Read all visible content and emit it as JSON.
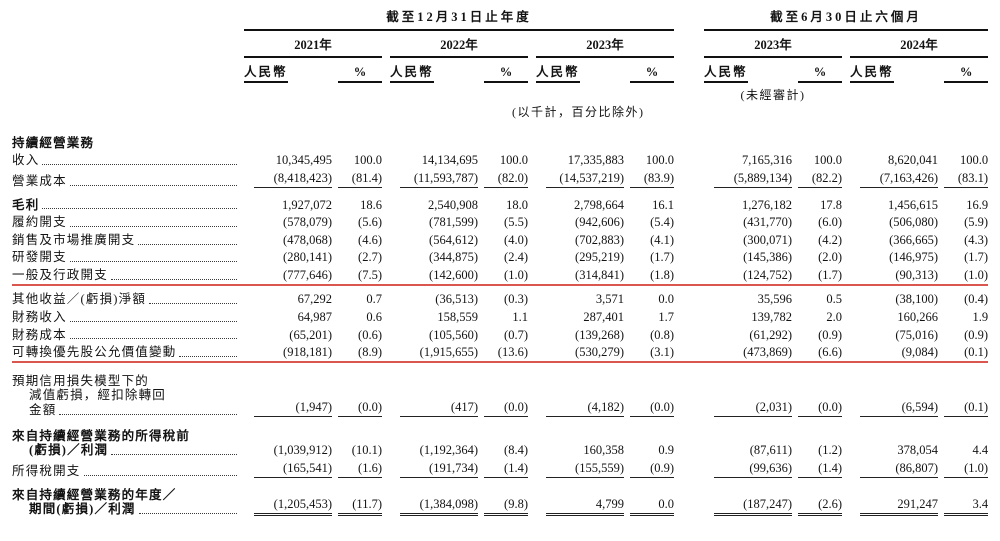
{
  "colors": {
    "red_annotation_line": "#d9574f",
    "rule_color": "#222222",
    "text_color": "#131313"
  },
  "header": {
    "annual_title": "截至12月31日止年度",
    "interim_title": "截至6月30日止六個月",
    "years": [
      "2021年",
      "2022年",
      "2023年",
      "2023年",
      "2024年"
    ],
    "currency_label": "人民幣",
    "percent_label": "%",
    "unaudited_note": "(未經審計)",
    "units_note": "(以千計，百分比除外)"
  },
  "rows": [
    {
      "name": "continuing-operations-header",
      "label": "持續經營業務",
      "bold": true,
      "values": null
    },
    {
      "name": "revenue",
      "label": "收入",
      "values": [
        "10,345,495",
        "100.0",
        "14,134,695",
        "100.0",
        "17,335,883",
        "100.0",
        "7,165,316",
        "100.0",
        "8,620,041",
        "100.0"
      ]
    },
    {
      "name": "cost-of-sales",
      "label": "營業成本",
      "rule_after": "single",
      "values": [
        "(8,418,423)",
        "(81.4)",
        "(11,593,787)",
        "(82.0)",
        "(14,537,219)",
        "(83.9)",
        "(5,889,134)",
        "(82.2)",
        "(7,163,426)",
        "(83.1)"
      ]
    },
    {
      "name": "gross-profit",
      "label": "毛利",
      "bold": true,
      "values": [
        "1,927,072",
        "18.6",
        "2,540,908",
        "18.0",
        "2,798,664",
        "16.1",
        "1,276,182",
        "17.8",
        "1,456,615",
        "16.9"
      ]
    },
    {
      "name": "fulfilment-expenses",
      "label": "履約開支",
      "values": [
        "(578,079)",
        "(5.6)",
        "(781,599)",
        "(5.5)",
        "(942,606)",
        "(5.4)",
        "(431,770)",
        "(6.0)",
        "(506,080)",
        "(5.9)"
      ]
    },
    {
      "name": "selling-marketing-expenses",
      "label": "銷售及市場推廣開支",
      "values": [
        "(478,068)",
        "(4.6)",
        "(564,612)",
        "(4.0)",
        "(702,883)",
        "(4.1)",
        "(300,071)",
        "(4.2)",
        "(366,665)",
        "(4.3)"
      ]
    },
    {
      "name": "rd-expenses",
      "label": "研發開支",
      "values": [
        "(280,141)",
        "(2.7)",
        "(344,875)",
        "(2.4)",
        "(295,219)",
        "(1.7)",
        "(145,386)",
        "(2.0)",
        "(146,975)",
        "(1.7)"
      ]
    },
    {
      "name": "general-admin-expenses",
      "label": "一般及行政開支",
      "red_line_after": true,
      "values": [
        "(777,646)",
        "(7.5)",
        "(142,600)",
        "(1.0)",
        "(314,841)",
        "(1.8)",
        "(124,752)",
        "(1.7)",
        "(90,313)",
        "(1.0)"
      ]
    },
    {
      "name": "other-gains-losses-net",
      "label": "其他收益／(虧損)淨額",
      "values": [
        "67,292",
        "0.7",
        "(36,513)",
        "(0.3)",
        "3,571",
        "0.0",
        "35,596",
        "0.5",
        "(38,100)",
        "(0.4)"
      ]
    },
    {
      "name": "finance-income",
      "label": "財務收入",
      "values": [
        "64,987",
        "0.6",
        "158,559",
        "1.1",
        "287,401",
        "1.7",
        "139,782",
        "2.0",
        "160,266",
        "1.9"
      ]
    },
    {
      "name": "finance-costs",
      "label": "財務成本",
      "values": [
        "(65,201)",
        "(0.6)",
        "(105,560)",
        "(0.7)",
        "(139,268)",
        "(0.8)",
        "(61,292)",
        "(0.9)",
        "(75,016)",
        "(0.9)"
      ]
    },
    {
      "name": "fv-change-convertible-preferred-shares",
      "label": "可轉換優先股公允價值變動",
      "red_line_after": true,
      "values": [
        "(918,181)",
        "(8.9)",
        "(1,915,655)",
        "(13.6)",
        "(530,279)",
        "(3.1)",
        "(473,869)",
        "(6.6)",
        "(9,084)",
        "(0.1)"
      ]
    },
    {
      "name": "ecl-impairment",
      "label_lines": [
        "預期信用損失模型下的",
        "減值虧損，經扣除轉回",
        "金額"
      ],
      "rule_after": "single",
      "values": [
        "(1,947)",
        "(0.0)",
        "(417)",
        "(0.0)",
        "(4,182)",
        "(0.0)",
        "(2,031)",
        "(0.0)",
        "(6,594)",
        "(0.1)"
      ]
    },
    {
      "name": "pretax-profit-loss",
      "label_lines": [
        "來自持續經營業務的所得稅前",
        "(虧損)／利潤"
      ],
      "bold": true,
      "values": [
        "(1,039,912)",
        "(10.1)",
        "(1,192,364)",
        "(8.4)",
        "160,358",
        "0.9",
        "(87,611)",
        "(1.2)",
        "378,054",
        "4.4"
      ]
    },
    {
      "name": "income-tax-expense",
      "label": "所得稅開支",
      "rule_after": "single",
      "values": [
        "(165,541)",
        "(1.6)",
        "(191,734)",
        "(1.4)",
        "(155,559)",
        "(0.9)",
        "(99,636)",
        "(1.4)",
        "(86,807)",
        "(1.0)"
      ]
    },
    {
      "name": "period-profit-loss",
      "label_lines": [
        "來自持續經營業務的年度／",
        "期間(虧損)／利潤"
      ],
      "bold": true,
      "rule_after": "double",
      "values": [
        "(1,205,453)",
        "(11.7)",
        "(1,384,098)",
        "(9.8)",
        "4,799",
        "0.0",
        "(187,247)",
        "(2.6)",
        "291,247",
        "3.4"
      ]
    }
  ]
}
